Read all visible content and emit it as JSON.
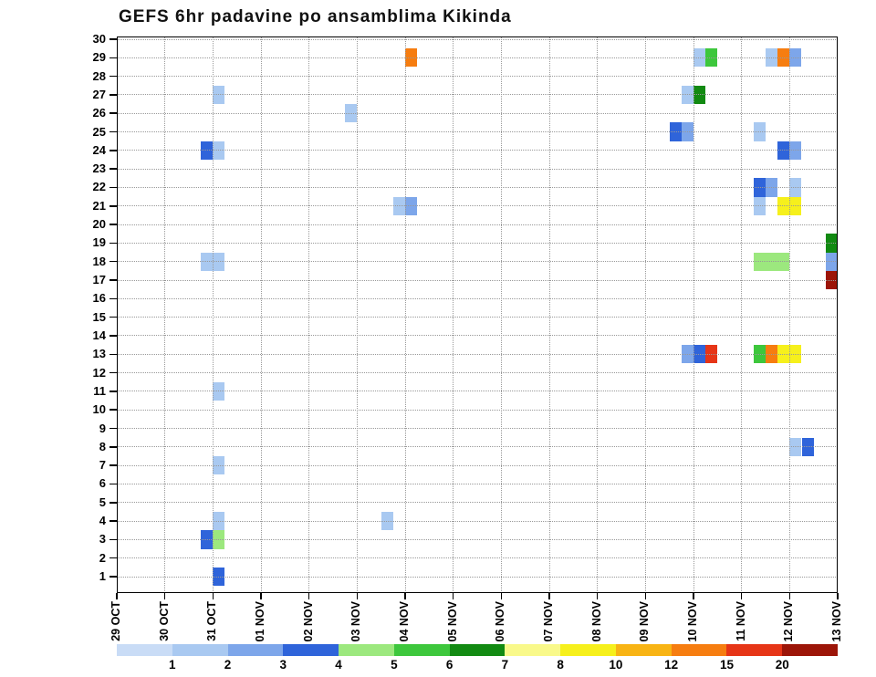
{
  "chart_data": {
    "type": "heatmap",
    "title": "GEFS 6hr padavine po ansamblima Kikinda",
    "x_tick_labels": [
      "29 OCT",
      "30 OCT",
      "31 OCT",
      "01 NOV",
      "02 NOV",
      "03 NOV",
      "04 NOV",
      "05 NOV",
      "06 NOV",
      "07 NOV",
      "08 NOV",
      "09 NOV",
      "10 NOV",
      "11 NOV",
      "12 NOV",
      "13 NOV"
    ],
    "y_ticks": [
      1,
      2,
      3,
      4,
      5,
      6,
      7,
      8,
      9,
      10,
      11,
      12,
      13,
      14,
      15,
      16,
      17,
      18,
      19,
      20,
      21,
      22,
      23,
      24,
      25,
      26,
      27,
      28,
      29,
      30
    ],
    "steps_per_day": 4,
    "grid": true,
    "legend_position": "bottom",
    "legend": {
      "labels": [
        "1",
        "2",
        "3",
        "4",
        "5",
        "6",
        "7",
        "8",
        "10",
        "12",
        "15",
        "20"
      ],
      "colors": [
        "#c9dcf6",
        "#a9c9f1",
        "#7da6ea",
        "#2f64da",
        "#9ce87e",
        "#3dc73c",
        "#128a12",
        "#f9f98a",
        "#f6f01c",
        "#f8b414",
        "#f67d10",
        "#e63517",
        "#9c1508"
      ]
    },
    "cells": [
      {
        "member": 29,
        "step": 24,
        "level": 10
      },
      {
        "member": 29,
        "step": 48,
        "level": 1
      },
      {
        "member": 29,
        "step": 49,
        "level": 5
      },
      {
        "member": 29,
        "step": 54,
        "level": 1
      },
      {
        "member": 29,
        "step": 55,
        "level": 10
      },
      {
        "member": 29,
        "step": 56,
        "level": 2
      },
      {
        "member": 27,
        "step": 8,
        "level": 1
      },
      {
        "member": 27,
        "step": 47,
        "level": 1
      },
      {
        "member": 27,
        "step": 48,
        "level": 6
      },
      {
        "member": 26,
        "step": 19,
        "level": 1
      },
      {
        "member": 25,
        "step": 46,
        "level": 3
      },
      {
        "member": 25,
        "step": 47,
        "level": 2
      },
      {
        "member": 25,
        "step": 53,
        "level": 1
      },
      {
        "member": 24,
        "step": 7,
        "level": 3
      },
      {
        "member": 24,
        "step": 8,
        "level": 1
      },
      {
        "member": 24,
        "step": 55,
        "level": 3
      },
      {
        "member": 24,
        "step": 56,
        "level": 2
      },
      {
        "member": 22,
        "step": 53,
        "level": 3
      },
      {
        "member": 22,
        "step": 54,
        "level": 2
      },
      {
        "member": 22,
        "step": 56,
        "level": 1
      },
      {
        "member": 21,
        "step": 23,
        "level": 1
      },
      {
        "member": 21,
        "step": 24,
        "level": 2
      },
      {
        "member": 21,
        "step": 53,
        "level": 1
      },
      {
        "member": 21,
        "step": 55,
        "level": 8
      },
      {
        "member": 21,
        "step": 56,
        "level": 8
      },
      {
        "member": 19,
        "step": 59,
        "level": 6
      },
      {
        "member": 18,
        "step": 7,
        "level": 1
      },
      {
        "member": 18,
        "step": 8,
        "level": 1
      },
      {
        "member": 18,
        "step": 53,
        "level": 4
      },
      {
        "member": 18,
        "step": 54,
        "level": 4
      },
      {
        "member": 18,
        "step": 55,
        "level": 4
      },
      {
        "member": 18,
        "step": 59,
        "level": 2
      },
      {
        "member": 17,
        "step": 59,
        "level": 12
      },
      {
        "member": 13,
        "step": 47,
        "level": 2
      },
      {
        "member": 13,
        "step": 48,
        "level": 3
      },
      {
        "member": 13,
        "step": 49,
        "level": 11
      },
      {
        "member": 13,
        "step": 53,
        "level": 5
      },
      {
        "member": 13,
        "step": 54,
        "level": 10
      },
      {
        "member": 13,
        "step": 55,
        "level": 8
      },
      {
        "member": 13,
        "step": 56,
        "level": 8
      },
      {
        "member": 11,
        "step": 8,
        "level": 1
      },
      {
        "member": 8,
        "step": 56,
        "level": 1
      },
      {
        "member": 8,
        "step": 57,
        "level": 3
      },
      {
        "member": 7,
        "step": 8,
        "level": 1
      },
      {
        "member": 4,
        "step": 8,
        "level": 1
      },
      {
        "member": 4,
        "step": 22,
        "level": 1
      },
      {
        "member": 3,
        "step": 7,
        "level": 3
      },
      {
        "member": 3,
        "step": 8,
        "level": 4
      },
      {
        "member": 1,
        "step": 8,
        "level": 3
      }
    ]
  }
}
